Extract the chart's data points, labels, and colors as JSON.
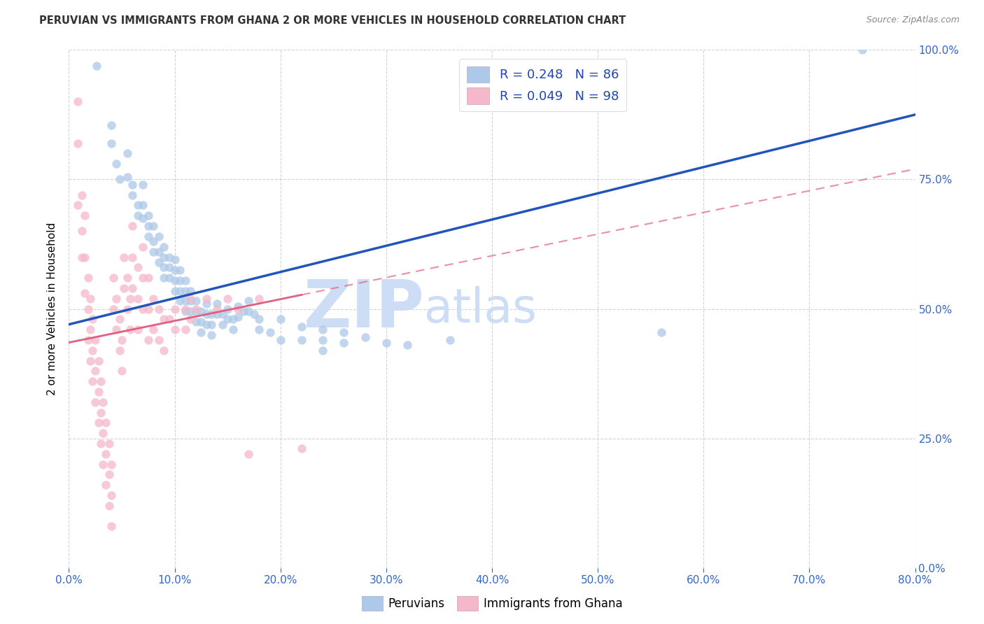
{
  "title": "PERUVIAN VS IMMIGRANTS FROM GHANA 2 OR MORE VEHICLES IN HOUSEHOLD CORRELATION CHART",
  "source": "Source: ZipAtlas.com",
  "ylabel_label": "2 or more Vehicles in Household",
  "xmin": 0.0,
  "xmax": 0.8,
  "ymin": 0.0,
  "ymax": 1.0,
  "blue_R": 0.248,
  "blue_N": 86,
  "pink_R": 0.049,
  "pink_N": 98,
  "blue_color": "#adc8e8",
  "pink_color": "#f5b8cb",
  "blue_line_color": "#2255bb",
  "pink_line_color": "#e06080",
  "grid_color": "#c8c8c8",
  "watermark_zip": "ZIP",
  "watermark_atlas": "atlas",
  "watermark_color": "#ccddf5",
  "legend_label_blue": "Peruvians",
  "legend_label_pink": "Immigrants from Ghana",
  "blue_line_x0": 0.0,
  "blue_line_y0": 0.47,
  "blue_line_x1": 0.8,
  "blue_line_y1": 0.875,
  "pink_line_x0": 0.0,
  "pink_line_y0": 0.435,
  "pink_line_x1": 0.8,
  "pink_line_y1": 0.77,
  "blue_scatter": [
    [
      0.026,
      0.97
    ],
    [
      0.04,
      0.855
    ],
    [
      0.04,
      0.82
    ],
    [
      0.045,
      0.78
    ],
    [
      0.048,
      0.75
    ],
    [
      0.055,
      0.8
    ],
    [
      0.055,
      0.755
    ],
    [
      0.06,
      0.74
    ],
    [
      0.06,
      0.72
    ],
    [
      0.065,
      0.7
    ],
    [
      0.065,
      0.68
    ],
    [
      0.07,
      0.74
    ],
    [
      0.07,
      0.7
    ],
    [
      0.07,
      0.675
    ],
    [
      0.075,
      0.68
    ],
    [
      0.075,
      0.66
    ],
    [
      0.075,
      0.64
    ],
    [
      0.08,
      0.66
    ],
    [
      0.08,
      0.63
    ],
    [
      0.08,
      0.61
    ],
    [
      0.085,
      0.64
    ],
    [
      0.085,
      0.61
    ],
    [
      0.085,
      0.59
    ],
    [
      0.09,
      0.62
    ],
    [
      0.09,
      0.6
    ],
    [
      0.09,
      0.58
    ],
    [
      0.09,
      0.56
    ],
    [
      0.095,
      0.6
    ],
    [
      0.095,
      0.58
    ],
    [
      0.095,
      0.56
    ],
    [
      0.1,
      0.595
    ],
    [
      0.1,
      0.575
    ],
    [
      0.1,
      0.555
    ],
    [
      0.1,
      0.535
    ],
    [
      0.105,
      0.575
    ],
    [
      0.105,
      0.555
    ],
    [
      0.105,
      0.535
    ],
    [
      0.105,
      0.515
    ],
    [
      0.11,
      0.555
    ],
    [
      0.11,
      0.535
    ],
    [
      0.11,
      0.515
    ],
    [
      0.11,
      0.495
    ],
    [
      0.115,
      0.535
    ],
    [
      0.115,
      0.515
    ],
    [
      0.115,
      0.495
    ],
    [
      0.12,
      0.515
    ],
    [
      0.12,
      0.495
    ],
    [
      0.12,
      0.475
    ],
    [
      0.125,
      0.495
    ],
    [
      0.125,
      0.475
    ],
    [
      0.125,
      0.455
    ],
    [
      0.13,
      0.51
    ],
    [
      0.13,
      0.49
    ],
    [
      0.13,
      0.47
    ],
    [
      0.135,
      0.49
    ],
    [
      0.135,
      0.47
    ],
    [
      0.135,
      0.45
    ],
    [
      0.14,
      0.51
    ],
    [
      0.14,
      0.49
    ],
    [
      0.145,
      0.49
    ],
    [
      0.145,
      0.47
    ],
    [
      0.15,
      0.5
    ],
    [
      0.15,
      0.48
    ],
    [
      0.155,
      0.48
    ],
    [
      0.155,
      0.46
    ],
    [
      0.16,
      0.505
    ],
    [
      0.16,
      0.485
    ],
    [
      0.165,
      0.495
    ],
    [
      0.17,
      0.515
    ],
    [
      0.17,
      0.495
    ],
    [
      0.175,
      0.49
    ],
    [
      0.18,
      0.48
    ],
    [
      0.18,
      0.46
    ],
    [
      0.19,
      0.455
    ],
    [
      0.2,
      0.48
    ],
    [
      0.2,
      0.44
    ],
    [
      0.22,
      0.465
    ],
    [
      0.22,
      0.44
    ],
    [
      0.24,
      0.46
    ],
    [
      0.24,
      0.44
    ],
    [
      0.24,
      0.42
    ],
    [
      0.26,
      0.455
    ],
    [
      0.26,
      0.435
    ],
    [
      0.28,
      0.445
    ],
    [
      0.3,
      0.435
    ],
    [
      0.32,
      0.43
    ],
    [
      0.36,
      0.44
    ],
    [
      0.56,
      0.455
    ],
    [
      0.75,
      1.0
    ]
  ],
  "pink_scatter": [
    [
      0.008,
      0.9
    ],
    [
      0.008,
      0.82
    ],
    [
      0.008,
      0.7
    ],
    [
      0.012,
      0.72
    ],
    [
      0.012,
      0.65
    ],
    [
      0.012,
      0.6
    ],
    [
      0.015,
      0.68
    ],
    [
      0.015,
      0.6
    ],
    [
      0.015,
      0.53
    ],
    [
      0.018,
      0.56
    ],
    [
      0.018,
      0.5
    ],
    [
      0.018,
      0.44
    ],
    [
      0.02,
      0.52
    ],
    [
      0.02,
      0.46
    ],
    [
      0.02,
      0.4
    ],
    [
      0.022,
      0.48
    ],
    [
      0.022,
      0.42
    ],
    [
      0.022,
      0.36
    ],
    [
      0.025,
      0.44
    ],
    [
      0.025,
      0.38
    ],
    [
      0.025,
      0.32
    ],
    [
      0.028,
      0.4
    ],
    [
      0.028,
      0.34
    ],
    [
      0.028,
      0.28
    ],
    [
      0.03,
      0.36
    ],
    [
      0.03,
      0.3
    ],
    [
      0.03,
      0.24
    ],
    [
      0.032,
      0.32
    ],
    [
      0.032,
      0.26
    ],
    [
      0.032,
      0.2
    ],
    [
      0.035,
      0.28
    ],
    [
      0.035,
      0.22
    ],
    [
      0.035,
      0.16
    ],
    [
      0.038,
      0.24
    ],
    [
      0.038,
      0.18
    ],
    [
      0.038,
      0.12
    ],
    [
      0.04,
      0.2
    ],
    [
      0.04,
      0.14
    ],
    [
      0.04,
      0.08
    ],
    [
      0.042,
      0.56
    ],
    [
      0.042,
      0.5
    ],
    [
      0.045,
      0.52
    ],
    [
      0.045,
      0.46
    ],
    [
      0.048,
      0.48
    ],
    [
      0.048,
      0.42
    ],
    [
      0.05,
      0.44
    ],
    [
      0.05,
      0.38
    ],
    [
      0.052,
      0.6
    ],
    [
      0.052,
      0.54
    ],
    [
      0.055,
      0.56
    ],
    [
      0.055,
      0.5
    ],
    [
      0.058,
      0.52
    ],
    [
      0.058,
      0.46
    ],
    [
      0.06,
      0.66
    ],
    [
      0.06,
      0.6
    ],
    [
      0.06,
      0.54
    ],
    [
      0.065,
      0.58
    ],
    [
      0.065,
      0.52
    ],
    [
      0.065,
      0.46
    ],
    [
      0.07,
      0.62
    ],
    [
      0.07,
      0.56
    ],
    [
      0.07,
      0.5
    ],
    [
      0.075,
      0.56
    ],
    [
      0.075,
      0.5
    ],
    [
      0.075,
      0.44
    ],
    [
      0.08,
      0.52
    ],
    [
      0.08,
      0.46
    ],
    [
      0.085,
      0.5
    ],
    [
      0.085,
      0.44
    ],
    [
      0.09,
      0.48
    ],
    [
      0.09,
      0.42
    ],
    [
      0.095,
      0.48
    ],
    [
      0.1,
      0.5
    ],
    [
      0.1,
      0.46
    ],
    [
      0.11,
      0.5
    ],
    [
      0.11,
      0.46
    ],
    [
      0.115,
      0.52
    ],
    [
      0.115,
      0.48
    ],
    [
      0.12,
      0.5
    ],
    [
      0.13,
      0.52
    ],
    [
      0.14,
      0.5
    ],
    [
      0.15,
      0.52
    ],
    [
      0.16,
      0.5
    ],
    [
      0.17,
      0.22
    ],
    [
      0.18,
      0.52
    ],
    [
      0.22,
      0.23
    ]
  ]
}
